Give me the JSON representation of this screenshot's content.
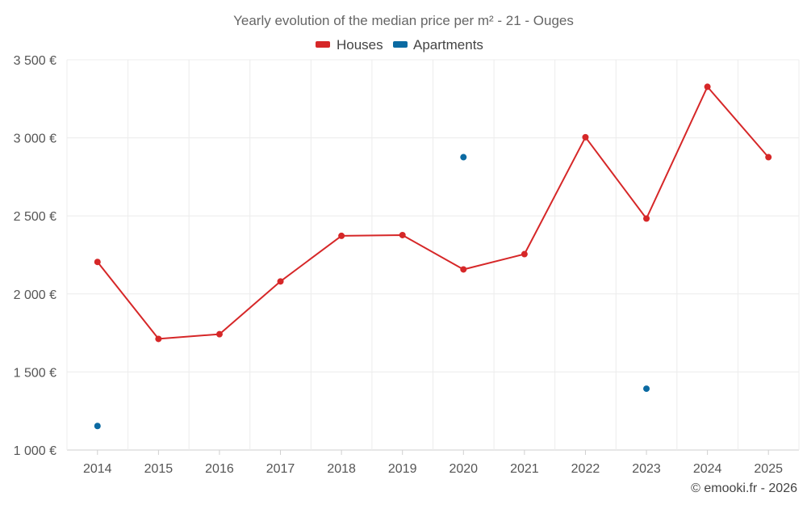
{
  "chart_data": {
    "type": "line",
    "title": "Yearly evolution of the median price per m² - 21 - Ouges",
    "categories": [
      "2014",
      "2015",
      "2016",
      "2017",
      "2018",
      "2019",
      "2020",
      "2021",
      "2022",
      "2023",
      "2024",
      "2025"
    ],
    "y_ticks": [
      {
        "value": 1000,
        "label": "1 000 €"
      },
      {
        "value": 1500,
        "label": "1 500 €"
      },
      {
        "value": 2000,
        "label": "2 000 €"
      },
      {
        "value": 2500,
        "label": "2 500 €"
      },
      {
        "value": 3000,
        "label": "3 000 €"
      },
      {
        "value": 3500,
        "label": "3 500 €"
      }
    ],
    "ylim": [
      1000,
      3500
    ],
    "grid": true,
    "legend_position": "top-center",
    "series": [
      {
        "name": "Houses",
        "color": "#d62728",
        "values": [
          2205,
          1712,
          1742,
          2080,
          2372,
          2377,
          2157,
          2255,
          3004,
          2483,
          3327,
          2876
        ]
      },
      {
        "name": "Apartments",
        "color": "#0b6aa2",
        "values": [
          1154,
          null,
          null,
          null,
          null,
          null,
          2876,
          null,
          null,
          1393,
          null,
          null
        ]
      }
    ],
    "credit": "© emooki.fr - 2026"
  }
}
